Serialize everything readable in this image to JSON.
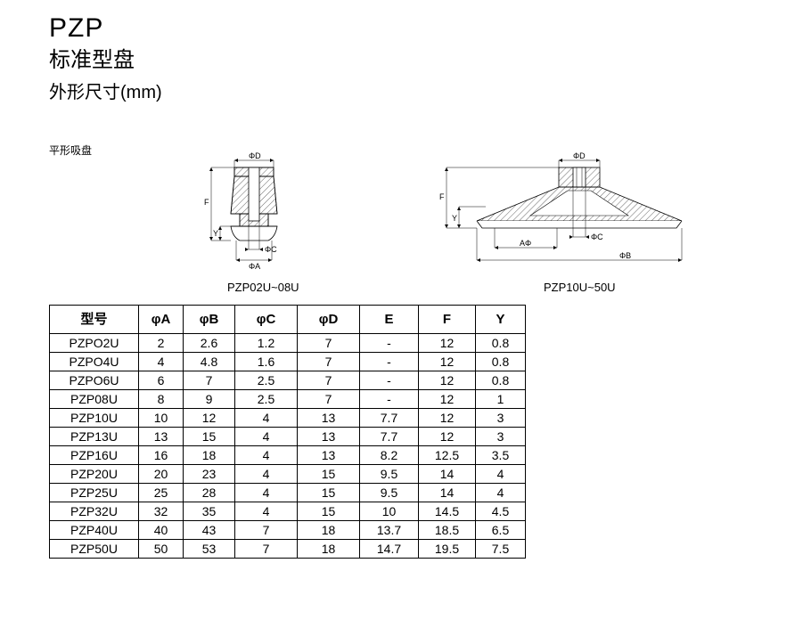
{
  "header": {
    "title": "PZP",
    "subtitle": "标准型盘",
    "dimensions": "外形尺寸(mm)",
    "note": "平形吸盘"
  },
  "diagrams": {
    "left": {
      "caption": "PZP02U~08U",
      "labels": {
        "phiD": "ΦD",
        "phiC": "ΦC",
        "phiA": "ΦA",
        "F": "F",
        "Y": "Y"
      }
    },
    "right": {
      "caption": "PZP10U~50U",
      "labels": {
        "phiD": "ΦD",
        "phiC": "ΦC",
        "phiA": "AΦ",
        "phiB": "ΦB",
        "F": "F",
        "Y": "Y"
      }
    }
  },
  "table": {
    "columns": [
      "型号",
      "φA",
      "φB",
      "φC",
      "φD",
      "E",
      "F",
      "Y"
    ],
    "rows": [
      [
        "PZPO2U",
        "2",
        "2.6",
        "1.2",
        "7",
        "-",
        "12",
        "0.8"
      ],
      [
        "PZPO4U",
        "4",
        "4.8",
        "1.6",
        "7",
        "-",
        "12",
        "0.8"
      ],
      [
        "PZPO6U",
        "6",
        "7",
        "2.5",
        "7",
        "-",
        "12",
        "0.8"
      ],
      [
        "PZP08U",
        "8",
        "9",
        "2.5",
        "7",
        "-",
        "12",
        "1"
      ],
      [
        "PZP10U",
        "10",
        "12",
        "4",
        "13",
        "7.7",
        "12",
        "3"
      ],
      [
        "PZP13U",
        "13",
        "15",
        "4",
        "13",
        "7.7",
        "12",
        "3"
      ],
      [
        "PZP16U",
        "16",
        "18",
        "4",
        "13",
        "8.2",
        "12.5",
        "3.5"
      ],
      [
        "PZP20U",
        "20",
        "23",
        "4",
        "15",
        "9.5",
        "14",
        "4"
      ],
      [
        "PZP25U",
        "25",
        "28",
        "4",
        "15",
        "9.5",
        "14",
        "4"
      ],
      [
        "PZP32U",
        "32",
        "35",
        "4",
        "15",
        "10",
        "14.5",
        "4.5"
      ],
      [
        "PZP40U",
        "40",
        "43",
        "7",
        "18",
        "13.7",
        "18.5",
        "6.5"
      ],
      [
        "PZP50U",
        "50",
        "53",
        "7",
        "18",
        "14.7",
        "19.5",
        "7.5"
      ]
    ]
  },
  "style": {
    "text_color": "#000000",
    "background": "#ffffff",
    "border_color": "#000000",
    "title_fontsize": 30,
    "subtitle_fontsize": 24,
    "dim_fontsize": 20,
    "note_fontsize": 12,
    "table_header_fontsize": 15,
    "table_cell_fontsize": 14,
    "table_header_height": 32,
    "table_row_height": 21,
    "col_widths": {
      "model": 100,
      "A": 50,
      "B": 58,
      "C": 70,
      "D": 70,
      "E": 66,
      "F": 64,
      "Y": 56
    }
  }
}
